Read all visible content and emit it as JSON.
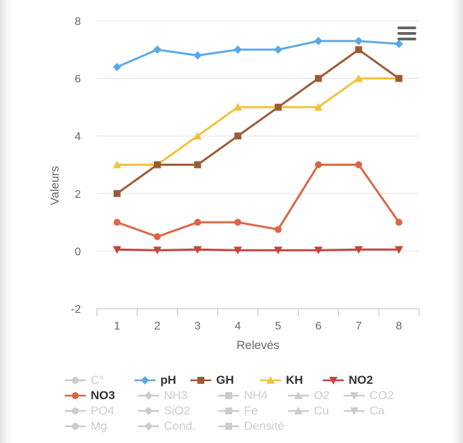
{
  "chart_data": {
    "type": "line",
    "xlabel": "Relevés",
    "ylabel": "Valeurs",
    "categories": [
      "1",
      "2",
      "3",
      "4",
      "5",
      "6",
      "7",
      "8"
    ],
    "ylim": [
      -2,
      8
    ],
    "yticks": [
      -2,
      0,
      2,
      4,
      6,
      8
    ],
    "grid": true,
    "legend_position": "bottom",
    "series": [
      {
        "name": "pH",
        "color": "#5aa9e6",
        "marker": "diamond",
        "values": [
          6.4,
          7.0,
          6.8,
          7.0,
          7.0,
          7.3,
          7.3,
          7.2
        ]
      },
      {
        "name": "GH",
        "color": "#9c5b36",
        "marker": "square",
        "values": [
          2,
          3,
          3,
          4,
          5,
          6,
          7,
          6
        ]
      },
      {
        "name": "KH",
        "color": "#f2c23a",
        "marker": "triangle",
        "values": [
          3,
          3,
          4,
          5,
          5,
          5,
          6,
          6
        ]
      },
      {
        "name": "NO3",
        "color": "#dc6546",
        "marker": "circle",
        "values": [
          1.0,
          0.5,
          1.0,
          1.0,
          0.75,
          3.0,
          3.0,
          1.0
        ]
      },
      {
        "name": "NO2",
        "color": "#c4453d",
        "marker": "triangle-down",
        "values": [
          0.05,
          0.03,
          0.05,
          0.03,
          0.03,
          0.03,
          0.05,
          0.05
        ]
      }
    ]
  },
  "legend": {
    "items": [
      {
        "label": "C°",
        "marker": "circle",
        "active": false
      },
      {
        "label": "pH",
        "marker": "diamond",
        "active": true,
        "color": "#5aa9e6"
      },
      {
        "label": "GH",
        "marker": "square",
        "active": true,
        "color": "#9c5b36"
      },
      {
        "label": "KH",
        "marker": "triangle",
        "active": true,
        "color": "#f2c23a"
      },
      {
        "label": "NO2",
        "marker": "triangle-down",
        "active": true,
        "color": "#c4453d"
      },
      {
        "label": "NO3",
        "marker": "circle",
        "active": true,
        "color": "#dc6546"
      },
      {
        "label": "NH3",
        "marker": "diamond",
        "active": false
      },
      {
        "label": "NH4",
        "marker": "square",
        "active": false
      },
      {
        "label": "O2",
        "marker": "triangle",
        "active": false
      },
      {
        "label": "CO2",
        "marker": "triangle-down",
        "active": false
      },
      {
        "label": "PO4",
        "marker": "circle",
        "active": false
      },
      {
        "label": "SiO2",
        "marker": "diamond",
        "active": false
      },
      {
        "label": "Fe",
        "marker": "square",
        "active": false
      },
      {
        "label": "Cu",
        "marker": "triangle",
        "active": false
      },
      {
        "label": "Ca",
        "marker": "triangle-down",
        "active": false
      },
      {
        "label": "Mg",
        "marker": "circle",
        "active": false
      },
      {
        "label": "Cond.",
        "marker": "diamond",
        "active": false
      },
      {
        "label": "Densité",
        "marker": "square",
        "active": false
      }
    ]
  },
  "menu": {
    "icon": "hamburger-menu-icon"
  }
}
